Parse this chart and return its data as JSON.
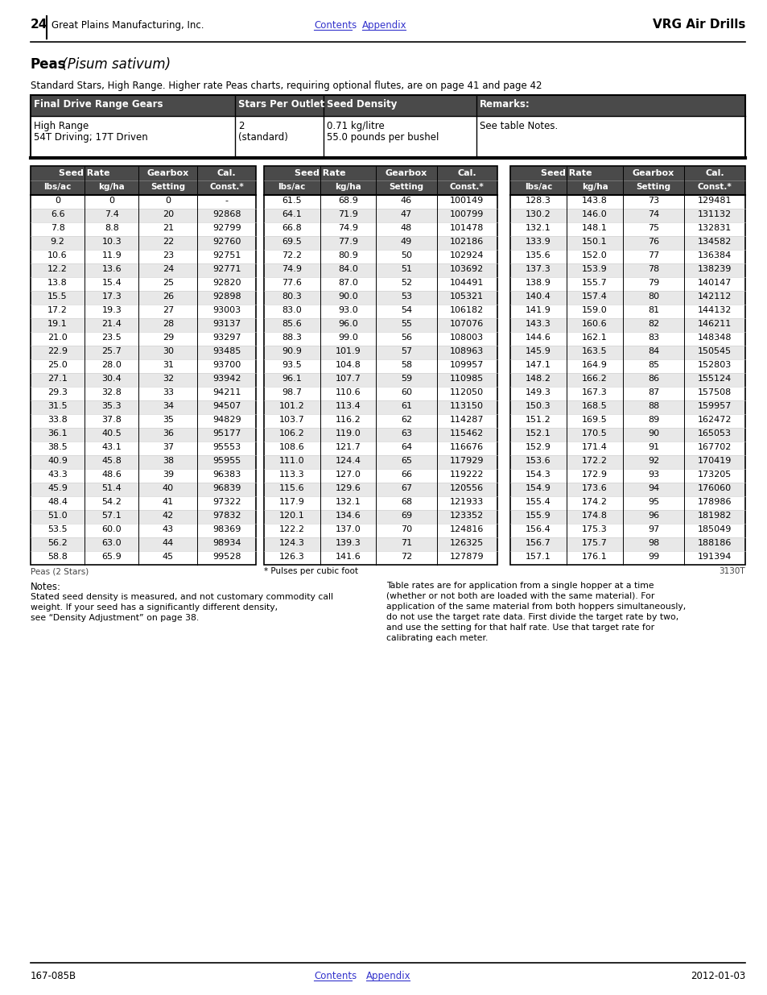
{
  "page_number": "24",
  "company": "Great Plains Manufacturing, Inc.",
  "nav_links": [
    "Contents",
    "Appendix"
  ],
  "title_right": "VRG Air Drills",
  "title_bold": "Peas",
  "title_italic": " (Pisum sativum)",
  "subtitle": "Standard Stars, High Range. Higher rate Peas charts, requiring optional flutes, are on page 41 and page 42",
  "info_headers": [
    "Final Drive Range Gears",
    "Stars Per Outlet",
    "Seed Density",
    "Remarks:"
  ],
  "info_row": [
    "High Range\n54T Driving; 17T Driven",
    "2\n(standard)",
    "0.71 kg/litre\n55.0 pounds per bushel",
    "See table Notes."
  ],
  "header_bg": "#4a4a4a",
  "alt_row_bg": "#e8e8e8",
  "data_col1": [
    [
      "0",
      "0",
      "0",
      "-"
    ],
    [
      "6.6",
      "7.4",
      "20",
      "92868"
    ],
    [
      "7.8",
      "8.8",
      "21",
      "92799"
    ],
    [
      "9.2",
      "10.3",
      "22",
      "92760"
    ],
    [
      "10.6",
      "11.9",
      "23",
      "92751"
    ],
    [
      "12.2",
      "13.6",
      "24",
      "92771"
    ],
    [
      "13.8",
      "15.4",
      "25",
      "92820"
    ],
    [
      "15.5",
      "17.3",
      "26",
      "92898"
    ],
    [
      "17.2",
      "19.3",
      "27",
      "93003"
    ],
    [
      "19.1",
      "21.4",
      "28",
      "93137"
    ],
    [
      "21.0",
      "23.5",
      "29",
      "93297"
    ],
    [
      "22.9",
      "25.7",
      "30",
      "93485"
    ],
    [
      "25.0",
      "28.0",
      "31",
      "93700"
    ],
    [
      "27.1",
      "30.4",
      "32",
      "93942"
    ],
    [
      "29.3",
      "32.8",
      "33",
      "94211"
    ],
    [
      "31.5",
      "35.3",
      "34",
      "94507"
    ],
    [
      "33.8",
      "37.8",
      "35",
      "94829"
    ],
    [
      "36.1",
      "40.5",
      "36",
      "95177"
    ],
    [
      "38.5",
      "43.1",
      "37",
      "95553"
    ],
    [
      "40.9",
      "45.8",
      "38",
      "95955"
    ],
    [
      "43.3",
      "48.6",
      "39",
      "96383"
    ],
    [
      "45.9",
      "51.4",
      "40",
      "96839"
    ],
    [
      "48.4",
      "54.2",
      "41",
      "97322"
    ],
    [
      "51.0",
      "57.1",
      "42",
      "97832"
    ],
    [
      "53.5",
      "60.0",
      "43",
      "98369"
    ],
    [
      "56.2",
      "63.0",
      "44",
      "98934"
    ],
    [
      "58.8",
      "65.9",
      "45",
      "99528"
    ]
  ],
  "data_col2": [
    [
      "61.5",
      "68.9",
      "46",
      "100149"
    ],
    [
      "64.1",
      "71.9",
      "47",
      "100799"
    ],
    [
      "66.8",
      "74.9",
      "48",
      "101478"
    ],
    [
      "69.5",
      "77.9",
      "49",
      "102186"
    ],
    [
      "72.2",
      "80.9",
      "50",
      "102924"
    ],
    [
      "74.9",
      "84.0",
      "51",
      "103692"
    ],
    [
      "77.6",
      "87.0",
      "52",
      "104491"
    ],
    [
      "80.3",
      "90.0",
      "53",
      "105321"
    ],
    [
      "83.0",
      "93.0",
      "54",
      "106182"
    ],
    [
      "85.6",
      "96.0",
      "55",
      "107076"
    ],
    [
      "88.3",
      "99.0",
      "56",
      "108003"
    ],
    [
      "90.9",
      "101.9",
      "57",
      "108963"
    ],
    [
      "93.5",
      "104.8",
      "58",
      "109957"
    ],
    [
      "96.1",
      "107.7",
      "59",
      "110985"
    ],
    [
      "98.7",
      "110.6",
      "60",
      "112050"
    ],
    [
      "101.2",
      "113.4",
      "61",
      "113150"
    ],
    [
      "103.7",
      "116.2",
      "62",
      "114287"
    ],
    [
      "106.2",
      "119.0",
      "63",
      "115462"
    ],
    [
      "108.6",
      "121.7",
      "64",
      "116676"
    ],
    [
      "111.0",
      "124.4",
      "65",
      "117929"
    ],
    [
      "113.3",
      "127.0",
      "66",
      "119222"
    ],
    [
      "115.6",
      "129.6",
      "67",
      "120556"
    ],
    [
      "117.9",
      "132.1",
      "68",
      "121933"
    ],
    [
      "120.1",
      "134.6",
      "69",
      "123352"
    ],
    [
      "122.2",
      "137.0",
      "70",
      "124816"
    ],
    [
      "124.3",
      "139.3",
      "71",
      "126325"
    ],
    [
      "126.3",
      "141.6",
      "72",
      "127879"
    ]
  ],
  "data_col3": [
    [
      "128.3",
      "143.8",
      "73",
      "129481"
    ],
    [
      "130.2",
      "146.0",
      "74",
      "131132"
    ],
    [
      "132.1",
      "148.1",
      "75",
      "132831"
    ],
    [
      "133.9",
      "150.1",
      "76",
      "134582"
    ],
    [
      "135.6",
      "152.0",
      "77",
      "136384"
    ],
    [
      "137.3",
      "153.9",
      "78",
      "138239"
    ],
    [
      "138.9",
      "155.7",
      "79",
      "140147"
    ],
    [
      "140.4",
      "157.4",
      "80",
      "142112"
    ],
    [
      "141.9",
      "159.0",
      "81",
      "144132"
    ],
    [
      "143.3",
      "160.6",
      "82",
      "146211"
    ],
    [
      "144.6",
      "162.1",
      "83",
      "148348"
    ],
    [
      "145.9",
      "163.5",
      "84",
      "150545"
    ],
    [
      "147.1",
      "164.9",
      "85",
      "152803"
    ],
    [
      "148.2",
      "166.2",
      "86",
      "155124"
    ],
    [
      "149.3",
      "167.3",
      "87",
      "157508"
    ],
    [
      "150.3",
      "168.5",
      "88",
      "159957"
    ],
    [
      "151.2",
      "169.5",
      "89",
      "162472"
    ],
    [
      "152.1",
      "170.5",
      "90",
      "165053"
    ],
    [
      "152.9",
      "171.4",
      "91",
      "167702"
    ],
    [
      "153.6",
      "172.2",
      "92",
      "170419"
    ],
    [
      "154.3",
      "172.9",
      "93",
      "173205"
    ],
    [
      "154.9",
      "173.6",
      "94",
      "176060"
    ],
    [
      "155.4",
      "174.2",
      "95",
      "178986"
    ],
    [
      "155.9",
      "174.8",
      "96",
      "181982"
    ],
    [
      "156.4",
      "175.3",
      "97",
      "185049"
    ],
    [
      "156.7",
      "175.7",
      "98",
      "188186"
    ],
    [
      "157.1",
      "176.1",
      "99",
      "191394"
    ]
  ],
  "footer_left": "Peas (2 Stars)",
  "footer_right": "3130T",
  "note_star": "* Pulses per cubic foot",
  "notes_left_header": "Notes:",
  "notes_left_lines": [
    "Stated seed density is measured, and not customary commodity call",
    "weight. If your seed has a significantly different density,",
    "see “Density Adjustment” on page 38."
  ],
  "notes_right_lines": [
    "Table rates are for application from a single hopper at a time",
    "(whether or not both are loaded with the same material). For",
    "application of the same material from both hoppers simultaneously,",
    "do not use the target rate data. First divide the target rate by two,",
    "and use the setting for that half rate. Use that target rate for",
    "calibrating each meter."
  ],
  "footer2_left": "167-085B",
  "footer2_right": "2012-01-03",
  "link_color": "#3333cc"
}
